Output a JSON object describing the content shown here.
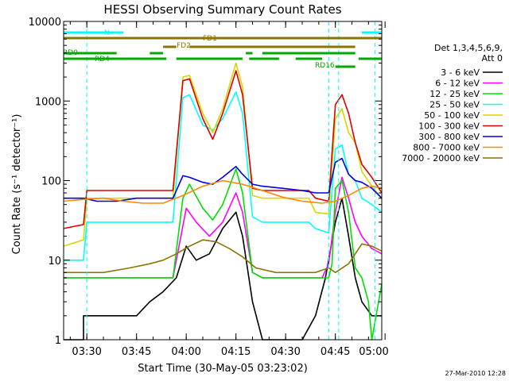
{
  "chart_data": {
    "type": "line",
    "title": "HESSI Observing Summary Count Rates",
    "xlabel": "Start Time (30-May-05 03:23:02)",
    "ylabel": "Count Rate (s⁻¹ detector⁻¹)",
    "y_scale": "log",
    "ylim": [
      1,
      10000
    ],
    "xlim_minutes": [
      0,
      96
    ],
    "x_ticks": [
      {
        "label": "03:30",
        "t": 7
      },
      {
        "label": "03:45",
        "t": 22
      },
      {
        "label": "04:00",
        "t": 37
      },
      {
        "label": "04:15",
        "t": 52
      },
      {
        "label": "04:30",
        "t": 67
      },
      {
        "label": "04:45",
        "t": 82
      },
      {
        "label": "05:00",
        "t": 97
      }
    ],
    "y_ticks": [
      {
        "label": "1",
        "v": 1
      },
      {
        "label": "10",
        "v": 10
      },
      {
        "label": "100",
        "v": 100
      },
      {
        "label": "1000",
        "v": 1000
      },
      {
        "label": "10000",
        "v": 10000
      }
    ],
    "legend_header": [
      "Det 1,3,4,5,6,9,",
      "Att 0"
    ],
    "legend_position": "right",
    "series": [
      {
        "name": "3 - 6 keV",
        "color": "#000000",
        "points": [
          [
            0,
            1
          ],
          [
            6,
            1
          ],
          [
            6,
            2
          ],
          [
            22,
            2
          ],
          [
            26,
            3
          ],
          [
            30,
            4
          ],
          [
            34,
            6
          ],
          [
            37,
            15
          ],
          [
            40,
            10
          ],
          [
            44,
            12
          ],
          [
            48,
            25
          ],
          [
            52,
            40
          ],
          [
            54,
            20
          ],
          [
            57,
            3
          ],
          [
            60,
            1
          ],
          [
            72,
            1
          ],
          [
            76,
            2
          ],
          [
            79,
            6
          ],
          [
            82,
            30
          ],
          [
            84,
            60
          ],
          [
            86,
            20
          ],
          [
            88,
            6
          ],
          [
            90,
            3
          ],
          [
            93,
            2
          ],
          [
            96,
            2
          ]
        ]
      },
      {
        "name": "6 - 12 keV",
        "color": "#ff00ff",
        "points": [
          [
            0,
            6
          ],
          [
            30,
            6
          ],
          [
            33,
            6
          ],
          [
            37,
            45
          ],
          [
            40,
            30
          ],
          [
            44,
            20
          ],
          [
            48,
            30
          ],
          [
            52,
            70
          ],
          [
            54,
            40
          ],
          [
            57,
            7
          ],
          [
            60,
            6
          ],
          [
            70,
            6
          ],
          [
            78,
            6
          ],
          [
            80,
            9
          ],
          [
            82,
            40
          ],
          [
            84,
            110
          ],
          [
            86,
            60
          ],
          [
            88,
            30
          ],
          [
            90,
            20
          ],
          [
            93,
            14
          ],
          [
            96,
            12
          ]
        ]
      },
      {
        "name": "12 - 25 keV",
        "color": "#00e000",
        "points": [
          [
            0,
            6
          ],
          [
            30,
            6
          ],
          [
            33,
            6
          ],
          [
            36,
            60
          ],
          [
            38,
            90
          ],
          [
            42,
            45
          ],
          [
            45,
            32
          ],
          [
            48,
            50
          ],
          [
            52,
            140
          ],
          [
            54,
            70
          ],
          [
            57,
            7
          ],
          [
            60,
            6
          ],
          [
            70,
            6
          ],
          [
            80,
            6
          ],
          [
            81,
            9
          ],
          [
            82,
            80
          ],
          [
            84,
            100
          ],
          [
            86,
            40
          ],
          [
            88,
            8
          ],
          [
            90,
            6
          ],
          [
            92,
            3
          ],
          [
            93,
            1
          ],
          [
            96,
            5
          ]
        ]
      },
      {
        "name": "25 - 50 keV",
        "color": "#00ffff",
        "points": [
          [
            0,
            10
          ],
          [
            6,
            10
          ],
          [
            7,
            30
          ],
          [
            22,
            30
          ],
          [
            30,
            30
          ],
          [
            33,
            30
          ],
          [
            36,
            1100
          ],
          [
            38,
            1200
          ],
          [
            42,
            500
          ],
          [
            45,
            430
          ],
          [
            48,
            600
          ],
          [
            52,
            1300
          ],
          [
            54,
            700
          ],
          [
            57,
            35
          ],
          [
            60,
            30
          ],
          [
            70,
            30
          ],
          [
            74,
            30
          ],
          [
            76,
            25
          ],
          [
            80,
            22
          ],
          [
            82,
            250
          ],
          [
            84,
            280
          ],
          [
            86,
            120
          ],
          [
            88,
            100
          ],
          [
            90,
            60
          ],
          [
            93,
            50
          ],
          [
            96,
            40
          ]
        ]
      },
      {
        "name": "50 - 100 keV",
        "color": "#d8d800",
        "points": [
          [
            0,
            15
          ],
          [
            6,
            18
          ],
          [
            7,
            60
          ],
          [
            22,
            60
          ],
          [
            30,
            60
          ],
          [
            33,
            60
          ],
          [
            36,
            2000
          ],
          [
            38,
            2100
          ],
          [
            42,
            700
          ],
          [
            45,
            400
          ],
          [
            48,
            800
          ],
          [
            52,
            3000
          ],
          [
            54,
            1500
          ],
          [
            57,
            65
          ],
          [
            60,
            60
          ],
          [
            70,
            60
          ],
          [
            74,
            60
          ],
          [
            76,
            40
          ],
          [
            80,
            38
          ],
          [
            82,
            600
          ],
          [
            84,
            800
          ],
          [
            86,
            400
          ],
          [
            88,
            300
          ],
          [
            90,
            130
          ],
          [
            93,
            85
          ],
          [
            96,
            60
          ]
        ]
      },
      {
        "name": "100 - 300 keV",
        "color": "#dd0000",
        "points": [
          [
            0,
            25
          ],
          [
            6,
            28
          ],
          [
            7,
            75
          ],
          [
            22,
            75
          ],
          [
            30,
            75
          ],
          [
            33,
            75
          ],
          [
            36,
            1800
          ],
          [
            38,
            1900
          ],
          [
            42,
            600
          ],
          [
            45,
            330
          ],
          [
            48,
            700
          ],
          [
            52,
            2400
          ],
          [
            54,
            1200
          ],
          [
            57,
            80
          ],
          [
            60,
            75
          ],
          [
            70,
            75
          ],
          [
            74,
            75
          ],
          [
            76,
            60
          ],
          [
            80,
            55
          ],
          [
            82,
            900
          ],
          [
            84,
            1200
          ],
          [
            86,
            700
          ],
          [
            88,
            300
          ],
          [
            90,
            160
          ],
          [
            93,
            110
          ],
          [
            96,
            70
          ]
        ]
      },
      {
        "name": "300 - 800 keV",
        "color": "#0000dd",
        "points": [
          [
            0,
            60
          ],
          [
            6,
            60
          ],
          [
            10,
            55
          ],
          [
            16,
            55
          ],
          [
            22,
            60
          ],
          [
            28,
            60
          ],
          [
            33,
            60
          ],
          [
            36,
            115
          ],
          [
            38,
            110
          ],
          [
            42,
            95
          ],
          [
            45,
            90
          ],
          [
            48,
            110
          ],
          [
            52,
            150
          ],
          [
            54,
            120
          ],
          [
            57,
            90
          ],
          [
            60,
            85
          ],
          [
            66,
            80
          ],
          [
            72,
            75
          ],
          [
            76,
            70
          ],
          [
            80,
            70
          ],
          [
            82,
            170
          ],
          [
            84,
            190
          ],
          [
            86,
            120
          ],
          [
            88,
            100
          ],
          [
            90,
            95
          ],
          [
            93,
            80
          ],
          [
            96,
            60
          ]
        ]
      },
      {
        "name": "800 - 7000 keV",
        "color": "#ff8800",
        "points": [
          [
            0,
            55
          ],
          [
            6,
            58
          ],
          [
            12,
            60
          ],
          [
            18,
            55
          ],
          [
            24,
            52
          ],
          [
            30,
            52
          ],
          [
            36,
            65
          ],
          [
            42,
            85
          ],
          [
            48,
            100
          ],
          [
            54,
            90
          ],
          [
            60,
            75
          ],
          [
            66,
            62
          ],
          [
            72,
            55
          ],
          [
            78,
            52
          ],
          [
            82,
            55
          ],
          [
            86,
            65
          ],
          [
            90,
            80
          ],
          [
            93,
            85
          ],
          [
            96,
            80
          ]
        ]
      },
      {
        "name": "7000 - 20000 keV",
        "color": "#8b7500",
        "points": [
          [
            0,
            7
          ],
          [
            6,
            7
          ],
          [
            12,
            7
          ],
          [
            20,
            8
          ],
          [
            26,
            9
          ],
          [
            30,
            10
          ],
          [
            34,
            12
          ],
          [
            38,
            15
          ],
          [
            42,
            18
          ],
          [
            46,
            17
          ],
          [
            50,
            14
          ],
          [
            54,
            11
          ],
          [
            58,
            8
          ],
          [
            64,
            7
          ],
          [
            70,
            7
          ],
          [
            76,
            7
          ],
          [
            80,
            8
          ],
          [
            82,
            7
          ],
          [
            86,
            9
          ],
          [
            90,
            16
          ],
          [
            93,
            15
          ],
          [
            96,
            13
          ]
        ]
      }
    ],
    "flags": [
      {
        "label": "N",
        "color": "#00ffff",
        "segments": [
          [
            0,
            18
          ],
          [
            90,
            96
          ]
        ],
        "level": 0
      },
      {
        "label": "FD1",
        "color": "#8b7500",
        "segments": [
          [
            0,
            96
          ]
        ],
        "level": 1
      },
      {
        "label": "FD2",
        "color": "#8b7500",
        "segments": [
          [
            30,
            34
          ],
          [
            38,
            88
          ]
        ],
        "level": 2
      },
      {
        "label": "RD0",
        "color": "#00aa00",
        "segments": [
          [
            0,
            16
          ],
          [
            26,
            30
          ],
          [
            55,
            57
          ],
          [
            60,
            88
          ]
        ],
        "level": 3
      },
      {
        "label": "RD4",
        "color": "#00aa00",
        "segments": [
          [
            0,
            31
          ],
          [
            34,
            54
          ],
          [
            56,
            65
          ],
          [
            70,
            78
          ],
          [
            89,
            96
          ]
        ],
        "level": 4
      },
      {
        "label": "RD16",
        "color": "#00aa00",
        "segments": [
          [
            82,
            88
          ]
        ],
        "level": 5
      }
    ],
    "vertical_lines": [
      7,
      80,
      83,
      94
    ],
    "grid": false
  },
  "footer": {
    "date_stamp": "27-Mar-2010 12:28"
  }
}
